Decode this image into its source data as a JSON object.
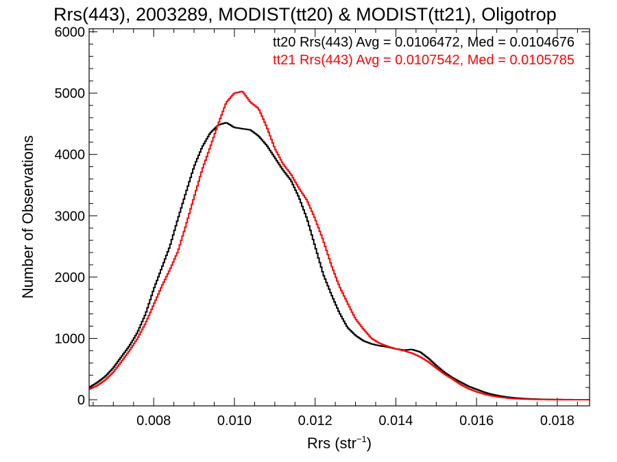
{
  "chart_data": {
    "type": "line",
    "title": "Rrs(443), 2003289, MODIST(tt20) & MODIST(tt21), Oligotrop",
    "xlabel": "Rrs (str",
    "xlabel_sup": "−1",
    "xlabel_end": ")",
    "ylabel": "Number of Observations",
    "xlim": [
      0.0064,
      0.0188
    ],
    "ylim": [
      -100,
      6050
    ],
    "grid": false,
    "legend_position": "top-right",
    "x_ticks": [
      {
        "value": 0.008,
        "label": "0.008"
      },
      {
        "value": 0.01,
        "label": "0.010"
      },
      {
        "value": 0.012,
        "label": "0.012"
      },
      {
        "value": 0.014,
        "label": "0.014"
      },
      {
        "value": 0.016,
        "label": "0.016"
      },
      {
        "value": 0.018,
        "label": "0.018"
      }
    ],
    "y_ticks": [
      {
        "value": 0,
        "label": "0"
      },
      {
        "value": 1000,
        "label": "1000"
      },
      {
        "value": 2000,
        "label": "2000"
      },
      {
        "value": 3000,
        "label": "3000"
      },
      {
        "value": 4000,
        "label": "4000"
      },
      {
        "value": 5000,
        "label": "5000"
      },
      {
        "value": 6000,
        "label": "6000"
      }
    ],
    "series": [
      {
        "name": "tt20",
        "legend": "tt20 Rrs(443) Avg = 0.0106472, Med = 0.0104676",
        "color": "#000000",
        "points": [
          [
            0.0064,
            200
          ],
          [
            0.0066,
            280
          ],
          [
            0.0068,
            380
          ],
          [
            0.007,
            520
          ],
          [
            0.0072,
            700
          ],
          [
            0.0074,
            880
          ],
          [
            0.0076,
            1100
          ],
          [
            0.0078,
            1400
          ],
          [
            0.008,
            1800
          ],
          [
            0.0082,
            2150
          ],
          [
            0.0084,
            2500
          ],
          [
            0.0086,
            2950
          ],
          [
            0.0088,
            3380
          ],
          [
            0.009,
            3800
          ],
          [
            0.0092,
            4120
          ],
          [
            0.0094,
            4350
          ],
          [
            0.0096,
            4480
          ],
          [
            0.0098,
            4520
          ],
          [
            0.01,
            4440
          ],
          [
            0.0102,
            4420
          ],
          [
            0.0104,
            4400
          ],
          [
            0.0106,
            4300
          ],
          [
            0.0108,
            4150
          ],
          [
            0.011,
            3950
          ],
          [
            0.0112,
            3750
          ],
          [
            0.0114,
            3580
          ],
          [
            0.0116,
            3300
          ],
          [
            0.0118,
            2950
          ],
          [
            0.012,
            2500
          ],
          [
            0.0122,
            2050
          ],
          [
            0.0124,
            1720
          ],
          [
            0.0126,
            1420
          ],
          [
            0.0128,
            1180
          ],
          [
            0.013,
            1050
          ],
          [
            0.0132,
            960
          ],
          [
            0.0134,
            910
          ],
          [
            0.0136,
            880
          ],
          [
            0.0138,
            860
          ],
          [
            0.014,
            830
          ],
          [
            0.0142,
            810
          ],
          [
            0.0144,
            820
          ],
          [
            0.0146,
            780
          ],
          [
            0.0148,
            680
          ],
          [
            0.015,
            560
          ],
          [
            0.0152,
            450
          ],
          [
            0.0154,
            360
          ],
          [
            0.0156,
            290
          ],
          [
            0.0158,
            220
          ],
          [
            0.016,
            170
          ],
          [
            0.0162,
            120
          ],
          [
            0.0164,
            85
          ],
          [
            0.0166,
            60
          ],
          [
            0.0168,
            40
          ],
          [
            0.017,
            28
          ],
          [
            0.0172,
            18
          ],
          [
            0.0174,
            12
          ],
          [
            0.0176,
            8
          ],
          [
            0.0178,
            5
          ],
          [
            0.018,
            3
          ],
          [
            0.0182,
            2
          ],
          [
            0.0184,
            1
          ],
          [
            0.0186,
            1
          ],
          [
            0.0188,
            0
          ]
        ]
      },
      {
        "name": "tt21",
        "legend": "tt21 Rrs(443) Avg = 0.0107542, Med = 0.0105785",
        "color": "#ff0000",
        "points": [
          [
            0.0064,
            170
          ],
          [
            0.0066,
            230
          ],
          [
            0.0068,
            320
          ],
          [
            0.007,
            450
          ],
          [
            0.0072,
            620
          ],
          [
            0.0074,
            800
          ],
          [
            0.0076,
            1000
          ],
          [
            0.0078,
            1250
          ],
          [
            0.008,
            1550
          ],
          [
            0.0082,
            1850
          ],
          [
            0.0084,
            2120
          ],
          [
            0.0086,
            2420
          ],
          [
            0.0088,
            2850
          ],
          [
            0.009,
            3300
          ],
          [
            0.0092,
            3750
          ],
          [
            0.0094,
            4120
          ],
          [
            0.0096,
            4500
          ],
          [
            0.0098,
            4850
          ],
          [
            0.01,
            5000
          ],
          [
            0.0102,
            5030
          ],
          [
            0.0104,
            4850
          ],
          [
            0.0106,
            4750
          ],
          [
            0.0108,
            4450
          ],
          [
            0.011,
            4100
          ],
          [
            0.0112,
            3850
          ],
          [
            0.0114,
            3680
          ],
          [
            0.0116,
            3450
          ],
          [
            0.0118,
            3250
          ],
          [
            0.012,
            2950
          ],
          [
            0.0122,
            2600
          ],
          [
            0.0124,
            2200
          ],
          [
            0.0126,
            1850
          ],
          [
            0.0128,
            1580
          ],
          [
            0.013,
            1320
          ],
          [
            0.0132,
            1150
          ],
          [
            0.0134,
            1000
          ],
          [
            0.0136,
            920
          ],
          [
            0.0138,
            870
          ],
          [
            0.014,
            830
          ],
          [
            0.0142,
            800
          ],
          [
            0.0144,
            760
          ],
          [
            0.0146,
            700
          ],
          [
            0.0148,
            620
          ],
          [
            0.015,
            520
          ],
          [
            0.0152,
            420
          ],
          [
            0.0154,
            340
          ],
          [
            0.0156,
            250
          ],
          [
            0.0158,
            180
          ],
          [
            0.016,
            130
          ],
          [
            0.0162,
            90
          ],
          [
            0.0164,
            60
          ],
          [
            0.0166,
            40
          ],
          [
            0.0168,
            25
          ],
          [
            0.017,
            15
          ],
          [
            0.0172,
            10
          ],
          [
            0.0174,
            6
          ],
          [
            0.0176,
            4
          ],
          [
            0.0178,
            2
          ],
          [
            0.018,
            2
          ],
          [
            0.0182,
            1
          ],
          [
            0.0184,
            1
          ],
          [
            0.0186,
            0
          ],
          [
            0.0188,
            0
          ]
        ]
      }
    ]
  }
}
